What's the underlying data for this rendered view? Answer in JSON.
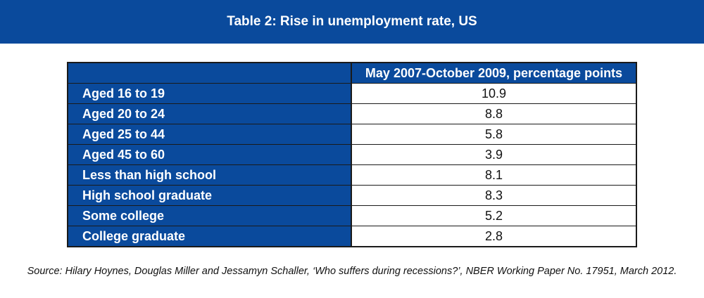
{
  "title": "Table 2: Rise in unemployment rate, US",
  "table": {
    "header": {
      "label": "",
      "value": "May 2007-October 2009, percentage points"
    },
    "rows": [
      {
        "label": "Aged 16 to 19",
        "value": "10.9"
      },
      {
        "label": "Aged 20 to 24",
        "value": "8.8"
      },
      {
        "label": "Aged 25 to 44",
        "value": "5.8"
      },
      {
        "label": "Aged 45 to 60",
        "value": "3.9"
      },
      {
        "label": "Less than high school",
        "value": "8.1"
      },
      {
        "label": "High school graduate",
        "value": "8.3"
      },
      {
        "label": "Some college",
        "value": "5.2"
      },
      {
        "label": "College graduate",
        "value": "2.8"
      }
    ]
  },
  "source": "Source:  Hilary Hoynes, Douglas Miller and Jessamyn Schaller, ‘Who suffers during recessions?’, NBER Working Paper No. 17951, March 2012.",
  "colors": {
    "brand_blue": "#0a4a9c",
    "border": "#1a1a1a"
  }
}
